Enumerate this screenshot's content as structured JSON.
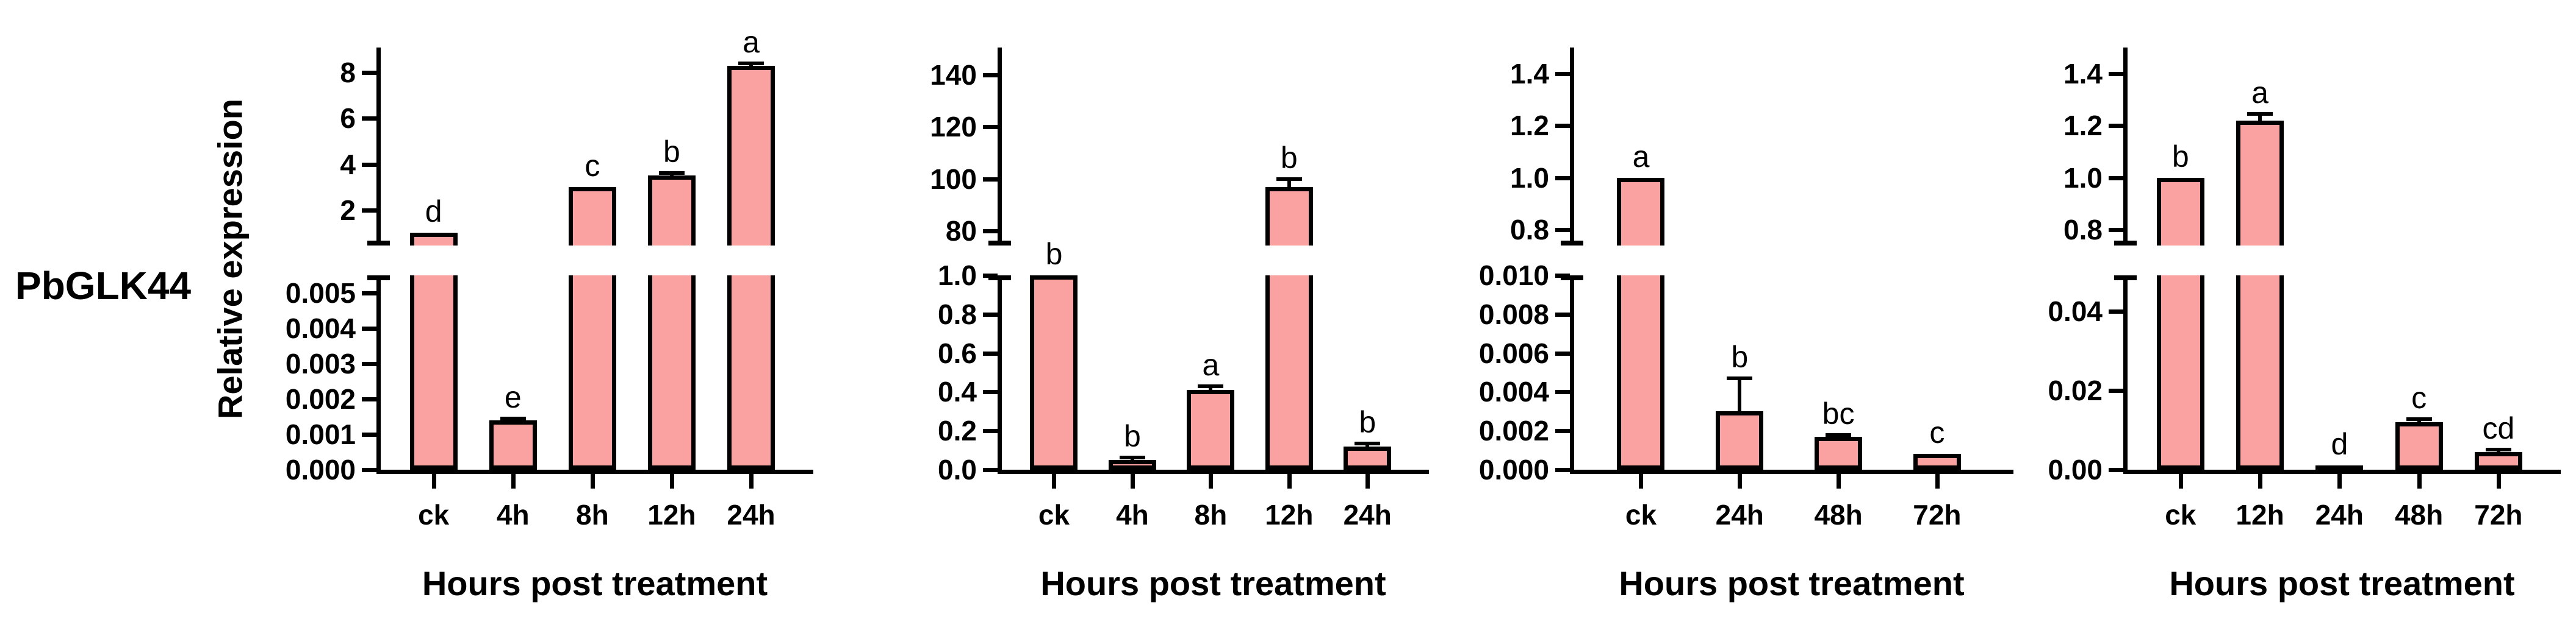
{
  "figure": {
    "gene_label": "PbGLK44",
    "y_axis_title": "Relative expression",
    "x_axis_title": "Hours post treatment",
    "colors": {
      "bar_fill": "#FAA2A2",
      "bar_border": "#000000",
      "text": "#000000",
      "background": "#ffffff"
    }
  },
  "chart_data": [
    {
      "type": "bar",
      "title": "PbGLK44 - panel 1",
      "xlabel": "Hours post treatment",
      "ylabel": "Relative expression",
      "broken_axis": true,
      "grid": false,
      "legend": "none",
      "categories": [
        "ck",
        "4h",
        "8h",
        "12h",
        "24h"
      ],
      "values": [
        1.0,
        0.0014,
        3.0,
        3.5,
        8.3
      ],
      "errors": [
        0,
        5e-05,
        0,
        0.12,
        0.12
      ],
      "sig_letters": [
        "d",
        "e",
        "c",
        "b",
        "a"
      ],
      "top_axis": {
        "range": [
          0.45,
          9.1
        ],
        "ticks": [
          {
            "v": 2,
            "label": "2"
          },
          {
            "v": 4,
            "label": "4"
          },
          {
            "v": 6,
            "label": "6"
          },
          {
            "v": 8,
            "label": "8"
          }
        ]
      },
      "bottom_axis": {
        "max": 0.0055,
        "ticks": [
          {
            "v": 0.005,
            "label": "0.005"
          },
          {
            "v": 0.004,
            "label": "0.004"
          },
          {
            "v": 0.003,
            "label": "0.003"
          },
          {
            "v": 0.002,
            "label": "0.002"
          },
          {
            "v": 0.001,
            "label": "0.001"
          },
          {
            "v": 0.0,
            "label": "0.000"
          }
        ]
      }
    },
    {
      "type": "bar",
      "title": "PbGLK44 - panel 2",
      "xlabel": "Hours post treatment",
      "ylabel": "Relative expression",
      "broken_axis": true,
      "grid": false,
      "legend": "none",
      "categories": [
        "ck",
        "4h",
        "8h",
        "12h",
        "24h"
      ],
      "values": [
        1.0,
        0.05,
        0.41,
        97,
        0.12
      ],
      "errors": [
        0,
        0.012,
        0.02,
        3,
        0.015
      ],
      "sig_letters": [
        "b",
        "b",
        "a",
        "b",
        "b"
      ],
      "top_axis": {
        "range": [
          74.5,
          150.5
        ],
        "ticks": [
          {
            "v": 80,
            "label": "80"
          },
          {
            "v": 100,
            "label": "100"
          },
          {
            "v": 120,
            "label": "120"
          },
          {
            "v": 140,
            "label": "140"
          }
        ]
      },
      "bottom_axis": {
        "max": 1.0,
        "ticks": [
          {
            "v": 1.0,
            "label": "1.0"
          },
          {
            "v": 0.8,
            "label": "0.8"
          },
          {
            "v": 0.6,
            "label": "0.6"
          },
          {
            "v": 0.4,
            "label": "0.4"
          },
          {
            "v": 0.2,
            "label": "0.2"
          },
          {
            "v": 0.0,
            "label": "0.0"
          }
        ]
      }
    },
    {
      "type": "bar",
      "title": "PbGLK44 - panel 3",
      "xlabel": "Hours post treatment",
      "ylabel": "Relative expression",
      "broken_axis": true,
      "grid": false,
      "legend": "none",
      "categories": [
        "ck",
        "24h",
        "48h",
        "72h"
      ],
      "values": [
        1.0,
        0.003,
        0.0017,
        0.0008
      ],
      "errors": [
        0,
        0.0017,
        8e-05,
        6e-05
      ],
      "sig_letters": [
        "a",
        "b",
        "bc",
        "c"
      ],
      "top_axis": {
        "range": [
          0.74,
          1.5
        ],
        "ticks": [
          {
            "v": 0.8,
            "label": "0.8"
          },
          {
            "v": 1.0,
            "label": "1.0"
          },
          {
            "v": 1.2,
            "label": "1.2"
          },
          {
            "v": 1.4,
            "label": "1.4"
          }
        ]
      },
      "bottom_axis": {
        "max": 0.01,
        "ticks": [
          {
            "v": 0.01,
            "label": "0.010"
          },
          {
            "v": 0.008,
            "label": "0.008"
          },
          {
            "v": 0.006,
            "label": "0.006"
          },
          {
            "v": 0.004,
            "label": "0.004"
          },
          {
            "v": 0.002,
            "label": "0.002"
          },
          {
            "v": 0.0,
            "label": "0.000"
          }
        ]
      }
    },
    {
      "type": "bar",
      "title": "PbGLK44 - panel 4",
      "xlabel": "Hours post treatment",
      "ylabel": "Relative expression",
      "broken_axis": true,
      "grid": false,
      "legend": "none",
      "categories": [
        "ck",
        "12h",
        "24h",
        "48h",
        "72h"
      ],
      "values": [
        1.0,
        1.22,
        0.001,
        0.012,
        0.0045
      ],
      "errors": [
        0,
        0.025,
        0.0002,
        0.0008,
        0.0005
      ],
      "sig_letters": [
        "b",
        "a",
        "d",
        "c",
        "cd"
      ],
      "top_axis": {
        "range": [
          0.74,
          1.5
        ],
        "ticks": [
          {
            "v": 0.8,
            "label": "0.8"
          },
          {
            "v": 1.0,
            "label": "1.0"
          },
          {
            "v": 1.2,
            "label": "1.2"
          },
          {
            "v": 1.4,
            "label": "1.4"
          }
        ]
      },
      "bottom_axis": {
        "max": 0.049,
        "ticks": [
          {
            "v": 0.04,
            "label": "0.04"
          },
          {
            "v": 0.02,
            "label": "0.02"
          },
          {
            "v": 0.0,
            "label": "0.00"
          }
        ]
      }
    }
  ]
}
